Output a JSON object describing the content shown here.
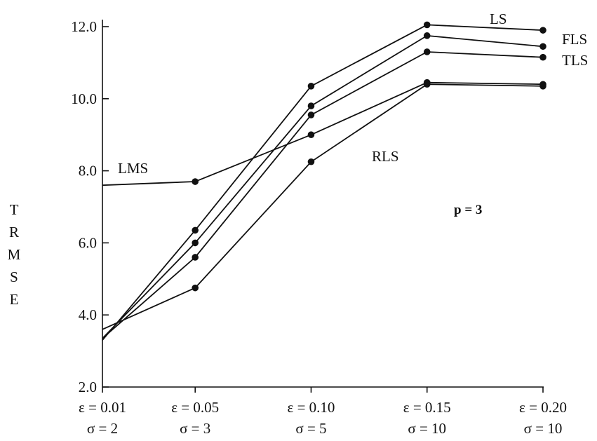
{
  "chart_data": {
    "type": "line",
    "title": "",
    "xlabel": "",
    "ylabel": "TRMSE",
    "ylim": [
      2.0,
      12.5
    ],
    "yticks": [
      "2.0",
      "4.0",
      "6.0",
      "8.0",
      "10.0",
      "12.0"
    ],
    "x_categories": [
      {
        "eps": "ε = 0.01",
        "sigma": "σ = 2"
      },
      {
        "eps": "ε = 0.05",
        "sigma": "σ = 3"
      },
      {
        "eps": "ε = 0.10",
        "sigma": "σ = 5"
      },
      {
        "eps": "ε = 0.15",
        "sigma": "σ = 10"
      },
      {
        "eps": "ε = 0.20",
        "sigma": "σ = 10"
      }
    ],
    "x": [
      0.01,
      0.05,
      0.1,
      0.15,
      0.2
    ],
    "annotation": "p = 3",
    "series": [
      {
        "name": "LS",
        "values": [
          3.3,
          6.35,
          10.35,
          12.05,
          11.9
        ]
      },
      {
        "name": "FLS",
        "values": [
          3.35,
          6.0,
          9.8,
          11.75,
          11.45
        ]
      },
      {
        "name": "TLS",
        "values": [
          3.35,
          5.6,
          9.55,
          11.3,
          11.15
        ]
      },
      {
        "name": "RLS",
        "values": [
          3.6,
          4.75,
          8.25,
          10.4,
          10.35
        ]
      },
      {
        "name": "LMS",
        "values": [
          7.6,
          7.7,
          9.0,
          10.45,
          10.4
        ]
      }
    ]
  }
}
